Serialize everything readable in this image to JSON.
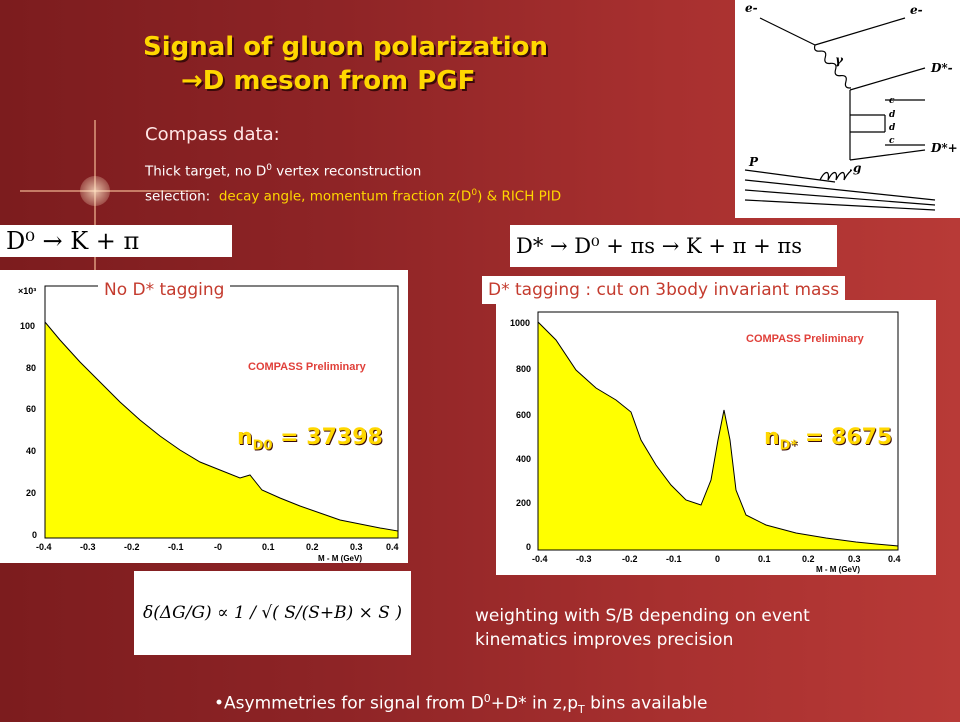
{
  "title": {
    "line1": "Signal of gluon polarization",
    "line2": "D meson from PGF",
    "arrow": "→"
  },
  "compass": {
    "heading": "Compass data:",
    "line1_pre": "Thick target,  no D",
    "line1_sup": "0",
    "line1_post": " vertex reconstruction",
    "line2_label": "selection:",
    "line2_pre": "decay angle, momentum fraction z(D",
    "line2_sup": "0",
    "line2_post": ")  & RICH  PID"
  },
  "diagram": {
    "labels": [
      "e-",
      "e-",
      "γ",
      "D*-",
      "c",
      "d",
      "d",
      "c",
      "D*+",
      "g",
      "P"
    ]
  },
  "left": {
    "equation": "D⁰ → K + π",
    "tag": "No D* tagging",
    "n_main": "n",
    "n_sub": "D0",
    "n_value": " = 37398",
    "plot": {
      "exponent_label": "×10³",
      "yticks": [
        "100",
        "80",
        "60",
        "40",
        "20",
        "0"
      ],
      "xticks": [
        "-0.4",
        "-0.3",
        "-0.2",
        "-0.1",
        "-0",
        "0.1",
        "0.2",
        "0.3",
        "0.4"
      ],
      "watermark": "COMPASS Preliminary",
      "xlabel": "M - M (GeV)"
    }
  },
  "right": {
    "equation": "D* → D⁰ + πs → K + π + πs",
    "tag": "D* tagging : cut on 3body invariant mass",
    "n_main": "n",
    "n_sub": "D*",
    "n_value": " = 8675",
    "plot": {
      "yticks": [
        "1000",
        "800",
        "600",
        "400",
        "200",
        "0"
      ],
      "xticks": [
        "-0.4",
        "-0.3",
        "-0.2",
        "-0.1",
        "0",
        "0.1",
        "0.2",
        "0.3",
        "0.4"
      ],
      "watermark": "COMPASS Preliminary",
      "xlabel": "M - M (GeV)"
    }
  },
  "formula": {
    "text": "δ(ΔG/G) ∝ 1 / √( S/(S+B) × S )"
  },
  "weighting": {
    "line1": "weighting with S/B depending on event",
    "line2": "kinematics improves precision"
  },
  "footer": {
    "pre": "Asymmetries for signal from D",
    "sup": "0",
    "mid": "+D* in z,p",
    "sub": "T",
    "post": " bins available"
  }
}
